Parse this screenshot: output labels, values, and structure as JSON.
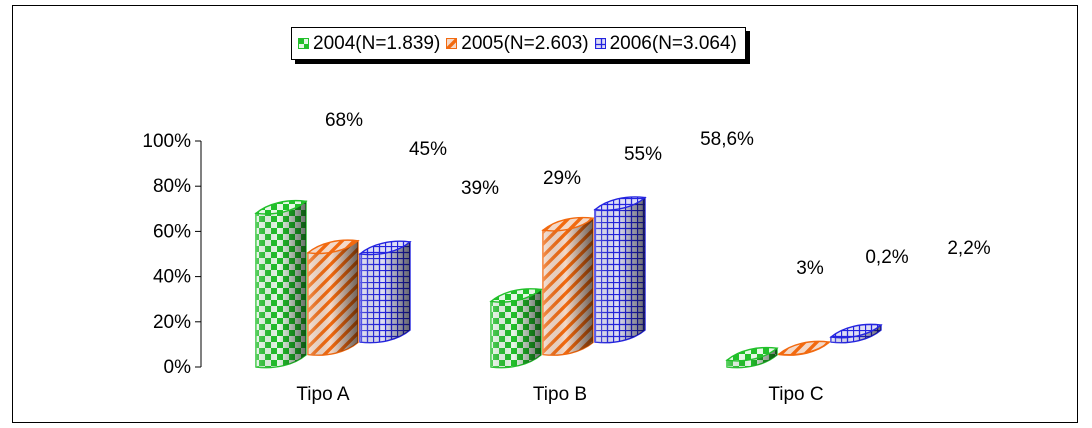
{
  "chart_data": {
    "type": "bar",
    "categories": [
      "Tipo A",
      "Tipo B",
      "Tipo C"
    ],
    "series": [
      {
        "name": "2004(N=1.839)",
        "values": [
          68,
          29,
          3
        ],
        "labels": [
          "68%",
          "29%",
          "3%"
        ],
        "color": "#22c02b"
      },
      {
        "name": "2005(N=2.603)",
        "values": [
          45,
          55,
          0.2
        ],
        "labels": [
          "45%",
          "55%",
          "0,2%"
        ],
        "color": "#f26a10"
      },
      {
        "name": "2006(N=3.064)",
        "values": [
          39,
          58.6,
          2.2
        ],
        "labels": [
          "39%",
          "58,6%",
          "2,2%"
        ],
        "color": "#2424e0"
      }
    ],
    "y_ticks": [
      "0%",
      "20%",
      "40%",
      "60%",
      "80%",
      "100%"
    ],
    "ylim": [
      0,
      100
    ],
    "legend_position": "top",
    "grid": false
  }
}
